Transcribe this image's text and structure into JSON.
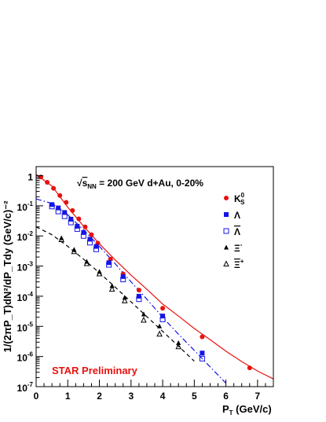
{
  "chart_data": {
    "type": "scatter",
    "title": "",
    "xlabel": "P_T (GeV/c)",
    "ylabel": "1/(2πP_T)dN²/dP_Tdy (GeV/c)⁻²",
    "x_axis_label": {
      "main": "P",
      "sub": "T",
      "rest": " (GeV/c)"
    },
    "y_axis_label": "1/(2πP_T)dN²/dP_Tdy (GeV/c)^-2",
    "xlim": [
      0,
      7.5
    ],
    "ylim": [
      1e-07,
      2
    ],
    "yscale": "log",
    "x_ticks": [
      0,
      1,
      2,
      3,
      4,
      5,
      6,
      7
    ],
    "x_tick_labels": [
      "0",
      "1",
      "2",
      "3",
      "4",
      "5",
      "6",
      "7"
    ],
    "y_ticks": [
      {
        "value": 1,
        "label": "1",
        "exp": ""
      },
      {
        "value": 0.1,
        "label": "10",
        "exp": "-1"
      },
      {
        "value": 0.01,
        "label": "10",
        "exp": "-2"
      },
      {
        "value": 0.001,
        "label": "10",
        "exp": "-3"
      },
      {
        "value": 0.0001,
        "label": "10",
        "exp": "-4"
      },
      {
        "value": 1e-05,
        "label": "10",
        "exp": "-5"
      },
      {
        "value": 1e-06,
        "label": "10",
        "exp": "-6"
      },
      {
        "value": 1e-07,
        "label": "10",
        "exp": "-7"
      }
    ],
    "annotation": {
      "sqrt": "√",
      "s": "s",
      "sub": "NN",
      "rest": " = 200 GeV d+Au, 0-20%"
    },
    "watermark": "STAR Preliminary",
    "legend_position": "top-right",
    "grid": false,
    "series": [
      {
        "name": "K_S^0",
        "legend": {
          "main": "K",
          "sub": "S",
          "sup": "0"
        },
        "marker": "filled-circle",
        "color": "#e8110f",
        "x": [
          0.15,
          0.35,
          0.55,
          0.75,
          0.95,
          1.15,
          1.35,
          1.55,
          1.75,
          1.95,
          2.35,
          2.75,
          3.25,
          4.0,
          5.25,
          6.75
        ],
        "y": [
          0.9,
          0.6,
          0.38,
          0.22,
          0.13,
          0.07,
          0.037,
          0.02,
          0.011,
          0.0058,
          0.0017,
          0.00055,
          0.00016,
          4e-05,
          4.5e-06,
          4.2e-07
        ]
      },
      {
        "name": "Λ",
        "legend": {
          "main": "Λ",
          "sub": "",
          "sup": ""
        },
        "marker": "filled-square",
        "color": "#1414e6",
        "x": [
          0.5,
          0.7,
          0.9,
          1.1,
          1.3,
          1.5,
          1.7,
          1.9,
          2.3,
          2.75,
          3.25,
          4.0,
          5.25
        ],
        "y": [
          0.11,
          0.085,
          0.06,
          0.036,
          0.021,
          0.013,
          0.0078,
          0.0045,
          0.0013,
          0.00045,
          0.0001,
          2.2e-05,
          1.3e-06
        ]
      },
      {
        "name": "Λ̄",
        "legend": {
          "main": "Λ",
          "sub": "",
          "sup": "",
          "overline": true
        },
        "marker": "open-square",
        "color": "#1414e6",
        "x": [
          0.5,
          0.7,
          0.9,
          1.1,
          1.3,
          1.5,
          1.7,
          1.9,
          2.3,
          2.75,
          3.25,
          4.0,
          5.25
        ],
        "y": [
          0.095,
          0.065,
          0.045,
          0.028,
          0.017,
          0.01,
          0.006,
          0.0036,
          0.0011,
          0.00036,
          8e-05,
          1.7e-05,
          8.5e-07
        ]
      },
      {
        "name": "Ξ⁻",
        "legend": {
          "main": "Ξ",
          "sub": "",
          "sup": "-"
        },
        "marker": "filled-triangle",
        "color": "#000000",
        "x": [
          0.8,
          1.2,
          1.6,
          2.0,
          2.4,
          2.8,
          3.4,
          3.9,
          4.5
        ],
        "y": [
          0.0085,
          0.0035,
          0.0014,
          0.00065,
          0.00022,
          9e-05,
          2.5e-05,
          1e-05,
          2.8e-06
        ]
      },
      {
        "name": "Ξ̄⁺",
        "legend": {
          "main": "Ξ",
          "sub": "",
          "sup": "+",
          "overline": true
        },
        "marker": "open-triangle",
        "color": "#000000",
        "x": [
          0.8,
          1.2,
          1.6,
          2.0,
          2.4,
          2.8,
          3.4,
          3.9,
          4.5
        ],
        "y": [
          0.0075,
          0.003,
          0.0012,
          0.00055,
          0.00017,
          7e-05,
          1.6e-05,
          5.5e-06,
          2.1e-06
        ]
      }
    ],
    "fit_curves": [
      {
        "style": "solid",
        "color": "#e8110f",
        "x": [
          0,
          0.5,
          1.0,
          1.5,
          2.0,
          2.5,
          3.0,
          3.5,
          4.0,
          4.5,
          5.0,
          5.5,
          6.0,
          6.5,
          7.0,
          7.5
        ],
        "y": [
          1.1,
          0.45,
          0.09,
          0.021,
          0.0055,
          0.0016,
          0.0005,
          0.00017,
          5.5e-05,
          2.2e-05,
          8.5e-06,
          3.6e-06,
          1.5e-06,
          6.8e-07,
          3.3e-07,
          1.8e-07
        ]
      },
      {
        "style": "dashdot",
        "color": "#1414e6",
        "x": [
          0,
          0.5,
          1.0,
          1.5,
          2.0,
          2.5,
          3.0,
          3.5,
          4.0,
          4.5,
          5.0,
          5.5,
          6.0
        ],
        "y": [
          0.17,
          0.12,
          0.05,
          0.016,
          0.0045,
          0.0012,
          0.0003,
          8e-05,
          2e-05,
          5.5e-06,
          1.6e-06,
          4.5e-07,
          1.3e-07
        ]
      },
      {
        "style": "dashed",
        "color": "#000000",
        "x": [
          0,
          0.5,
          1.0,
          1.5,
          2.0,
          2.5,
          3.0,
          3.5,
          4.0,
          4.5,
          5.0
        ],
        "y": [
          0.02,
          0.011,
          0.0045,
          0.0017,
          0.0006,
          0.0002,
          6.5e-05,
          2.1e-05,
          6.8e-06,
          2.2e-06,
          7e-07
        ]
      }
    ]
  }
}
